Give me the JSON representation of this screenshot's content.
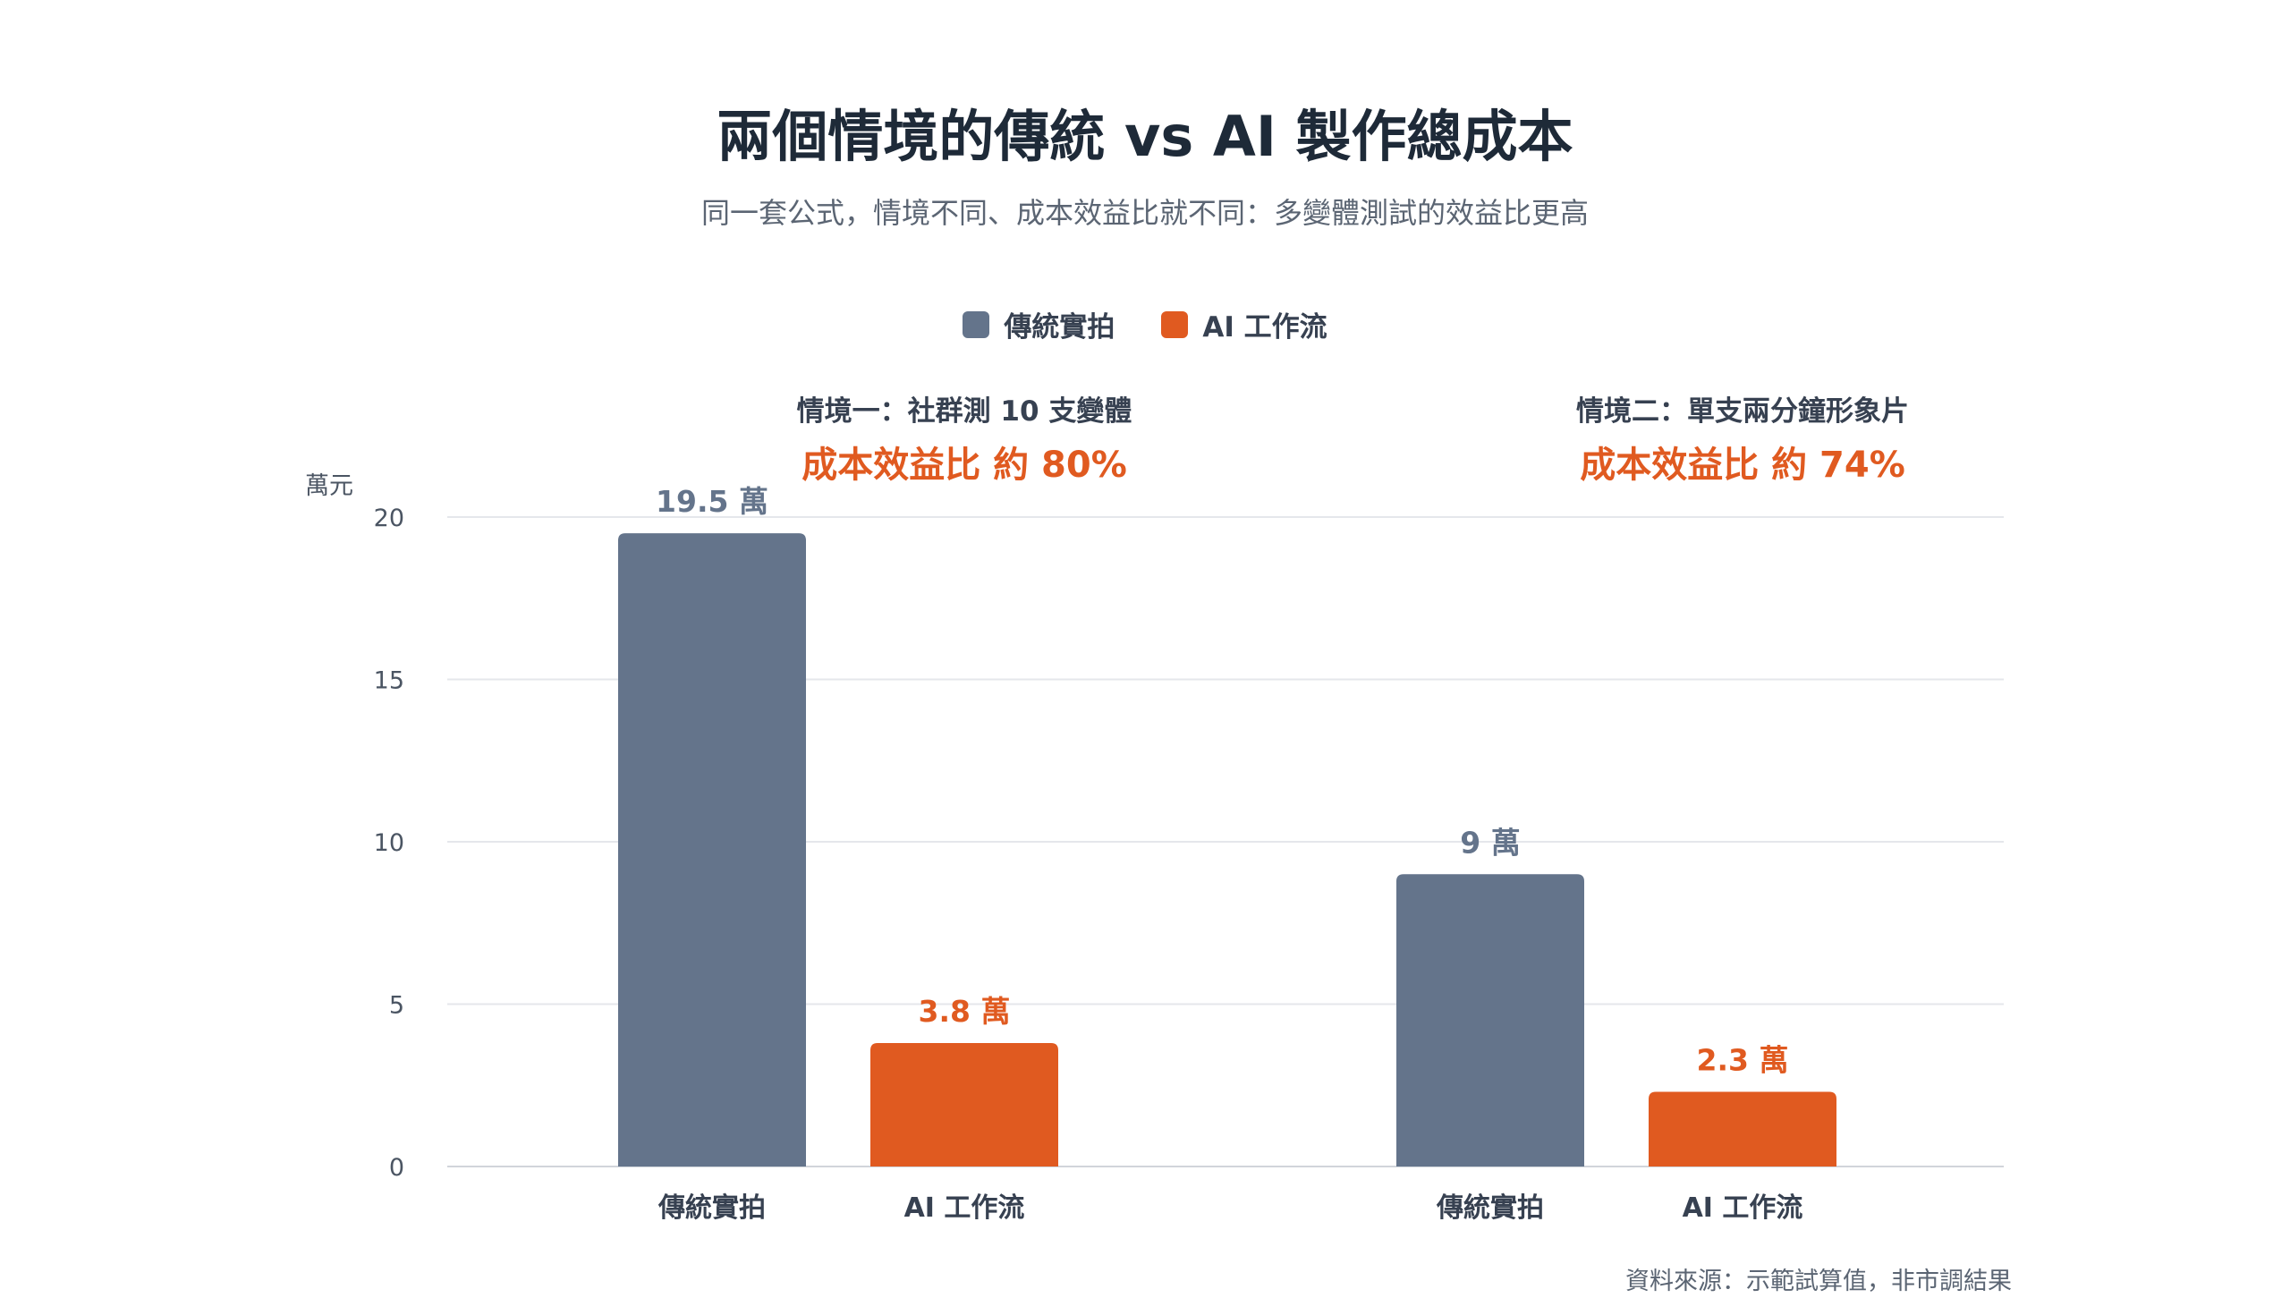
{
  "title": "兩個情境的傳統 vs AI 製作總成本",
  "subtitle": "同一套公式，情境不同、成本效益比就不同：多變體測試的效益比更高",
  "source": "資料來源：示範試算值，非市調結果",
  "colors": {
    "traditional": "#64748b",
    "ai": "#e05a20",
    "grid": "#e5e7eb",
    "axis": "#d1d5db"
  },
  "chart_data": {
    "type": "bar",
    "ylabel": "萬元",
    "ylim": [
      0,
      20
    ],
    "yticks": [
      0,
      5,
      10,
      15,
      20
    ],
    "grid": true,
    "legend_position": "top-center",
    "series": [
      {
        "name": "傳統實拍",
        "color": "#64748b"
      },
      {
        "name": "AI 工作流",
        "color": "#e05a20"
      }
    ],
    "groups": [
      {
        "label": "情境一：社群測 10 支變體",
        "ratio_label": "成本效益比 約 80%",
        "bars": [
          {
            "category": "傳統實拍",
            "value": 19.5,
            "value_label": "19.5 萬"
          },
          {
            "category": "AI 工作流",
            "value": 3.8,
            "value_label": "3.8 萬"
          }
        ]
      },
      {
        "label": "情境二：單支兩分鐘形象片",
        "ratio_label": "成本效益比 約 74%",
        "bars": [
          {
            "category": "傳統實拍",
            "value": 9,
            "value_label": "9 萬"
          },
          {
            "category": "AI 工作流",
            "value": 2.3,
            "value_label": "2.3 萬"
          }
        ]
      }
    ]
  }
}
